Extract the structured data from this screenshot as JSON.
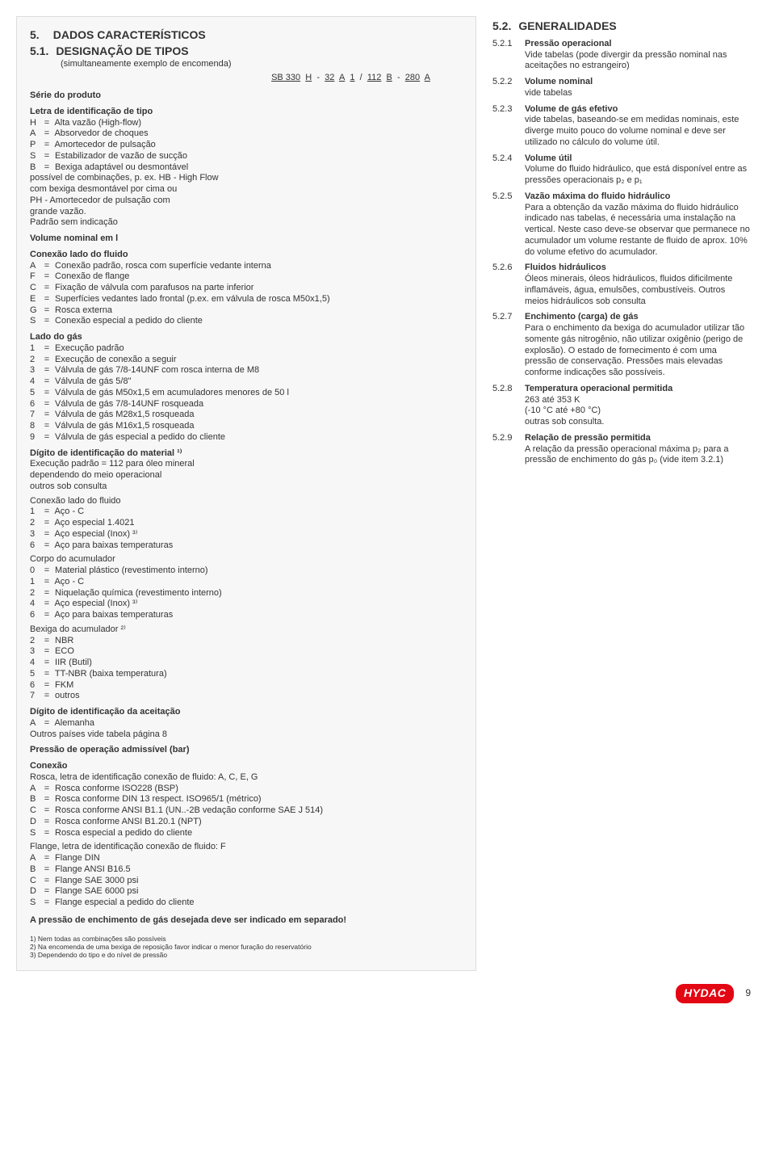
{
  "left": {
    "sec_num": "5.",
    "sec_title": "DADOS CARACTERÍSTICOS",
    "sub_num": "5.1.",
    "sub_title": "DESIGNAÇÃO DE TIPOS",
    "sub_caption": "(simultaneamente exemplo de encomenda)",
    "code_parts": [
      "SB 330",
      "H",
      "-",
      "32",
      "A",
      "1",
      "/",
      "112",
      "B",
      "-",
      "280",
      "A"
    ],
    "groups": [
      {
        "title": "Série do produto"
      },
      {
        "title": "Letra de identificação de tipo",
        "lines": [
          [
            "H",
            "Alta vazão (High-flow)"
          ],
          [
            "A",
            "Absorvedor de choques"
          ],
          [
            "P",
            "Amortecedor de pulsação"
          ],
          [
            "S",
            "Estabilizador de vazão de sucção"
          ],
          [
            "B",
            "Bexiga adaptável ou desmontável"
          ]
        ],
        "trailer": [
          "possível de combinações, p. ex. HB - High Flow",
          "com bexiga desmontável por cima ou",
          "PH - Amortecedor de pulsação com",
          "grande vazão.",
          "Padrão sem indicação"
        ]
      },
      {
        "title": "Volume nominal em l"
      },
      {
        "title": "Conexão lado do fluido",
        "lines": [
          [
            "A",
            "Conexão padrão, rosca com superfície vedante interna"
          ],
          [
            "F",
            "Conexão de flange"
          ],
          [
            "C",
            "Fixação de válvula com parafusos na parte inferior"
          ],
          [
            "E",
            "Superfícies vedantes lado frontal (p.ex. em válvula de rosca M50x1,5)"
          ],
          [
            "G",
            "Rosca externa"
          ],
          [
            "S",
            "Conexão especial a pedido do cliente"
          ]
        ]
      },
      {
        "title": "Lado do gás",
        "lines": [
          [
            "1",
            "Execução padrão"
          ],
          [
            "2",
            "Execução de conexão a seguir"
          ],
          [
            "3",
            "Válvula de gás 7/8-14UNF com rosca interna de M8"
          ],
          [
            "4",
            "Válvula de gás 5/8\""
          ],
          [
            "5",
            "Válvula de gás M50x1,5 em acumuladores menores de 50 l"
          ],
          [
            "6",
            "Válvula de gás 7/8-14UNF rosqueada"
          ],
          [
            "7",
            "Válvula de gás M28x1,5 rosqueada"
          ],
          [
            "8",
            "Válvula de gás M16x1,5 rosqueada"
          ],
          [
            "9",
            "Válvula de gás especial a pedido do cliente"
          ]
        ]
      },
      {
        "title": "Dígito de identificação do material ¹⁾",
        "trailer": [
          "Execução padrão = 112 para óleo mineral",
          "dependendo do meio operacional",
          "outros sob consulta"
        ],
        "subgroups": [
          {
            "subtitle": "Conexão lado do fluido",
            "lines": [
              [
                "1",
                "Aço - C"
              ],
              [
                "2",
                "Aço especial 1.4021"
              ],
              [
                "3",
                "Aço especial (Inox) ³⁾"
              ],
              [
                "6",
                "Aço para baixas temperaturas"
              ]
            ]
          },
          {
            "subtitle": "Corpo do acumulador",
            "lines": [
              [
                "0",
                "Material plástico (revestimento interno)"
              ],
              [
                "1",
                "Aço - C"
              ],
              [
                "2",
                "Niquelação química (revestimento interno)"
              ],
              [
                "4",
                "Aço especial (Inox) ³⁾"
              ],
              [
                "6",
                "Aço para baixas temperaturas"
              ]
            ]
          },
          {
            "subtitle": "Bexiga do acumulador ²⁾",
            "lines": [
              [
                "2",
                "NBR"
              ],
              [
                "3",
                "ECO"
              ],
              [
                "4",
                "IIR (Butil)"
              ],
              [
                "5",
                "TT-NBR (baixa temperatura)"
              ],
              [
                "6",
                "FKM"
              ],
              [
                "7",
                "outros"
              ]
            ]
          }
        ]
      },
      {
        "title": "Dígito de identificação da aceitação",
        "lines": [
          [
            "A",
            "Alemanha"
          ]
        ],
        "trailer": [
          "Outros países vide tabela página 8"
        ]
      },
      {
        "title": "Pressão de operação admissível (bar)"
      },
      {
        "title": "Conexão",
        "trailer_first": [
          "Rosca, letra de identificação conexão de fluido: A, C, E, G"
        ],
        "lines": [
          [
            "A",
            "Rosca conforme ISO228 (BSP)"
          ],
          [
            "B",
            "Rosca conforme DIN 13 respect. ISO965/1 (métrico)"
          ],
          [
            "C",
            "Rosca conforme ANSI B1.1 (UN..-2B vedação conforme SAE J 514)"
          ],
          [
            "D",
            "Rosca conforme ANSI B1.20.1 (NPT)"
          ],
          [
            "S",
            "Rosca especial a pedido do cliente"
          ]
        ],
        "subgroups": [
          {
            "subtitle": "Flange, letra de identificação conexão de fluido: F",
            "lines": [
              [
                "A",
                "Flange DIN"
              ],
              [
                "B",
                "Flange ANSI B16.5"
              ],
              [
                "C",
                "Flange SAE 3000 psi"
              ],
              [
                "D",
                "Flange SAE 6000 psi"
              ],
              [
                "S",
                "Flange especial a pedido do cliente"
              ]
            ]
          }
        ]
      }
    ],
    "final_bold": "A pressão de enchimento de gás desejada deve ser indicado em separado!",
    "footnotes": [
      "1) Nem todas as combinações são possíveis",
      "2) Na encomenda de uma bexiga de reposição favor indicar o menor furação do reservatório",
      "3) Dependendo do tipo e do nível de pressão"
    ]
  },
  "right": {
    "sec_num": "5.2.",
    "sec_title": "GENERALIDADES",
    "items": [
      {
        "n": "5.2.1",
        "t": "Pressão operacional",
        "b": "Vide tabelas (pode divergir da pressão nominal nas aceitações no estrangeiro)"
      },
      {
        "n": "5.2.2",
        "t": "Volume nominal",
        "b": "vide tabelas"
      },
      {
        "n": "5.2.3",
        "t": "Volume de gás efetivo",
        "b": "vide tabelas, baseando-se em medidas nominais, este diverge muito pouco do volume nominal e deve ser utilizado no cálculo do volume útil."
      },
      {
        "n": "5.2.4",
        "t": "Volume útil",
        "b": "Volume do fluido hidráulico, que está disponível entre as pressões operacionais p₂ e p₁"
      },
      {
        "n": "5.2.5",
        "t": "Vazão máxima do fluido hidráulico",
        "b": "Para a obtenção da vazão máxima do fluido hidráulico indicado nas tabelas, é necessária uma instalação na vertical. Neste caso deve-se observar que permanece no acumulador um volume restante de fluido de aprox. 10% do volume efetivo do acumulador."
      },
      {
        "n": "5.2.6",
        "t": "Fluidos hidráulicos",
        "b": "Óleos minerais, óleos hidráulicos, fluidos dificilmente inflamáveis, água, emulsões, combustíveis. Outros meios hidráulicos sob consulta"
      },
      {
        "n": "5.2.7",
        "t": "Enchimento (carga) de gás",
        "b": "Para o enchimento da bexiga do acumulador utilizar tão somente gás nitrogênio, não utilizar oxigênio (perigo de explosão). O estado de fornecimento é com uma pressão de conservação. Pressões mais elevadas conforme indicações são possíveis."
      },
      {
        "n": "5.2.8",
        "t": "Temperatura operacional permitida",
        "b": "263 até 353 K\n(-10 °C até +80 °C)\noutras sob consulta."
      },
      {
        "n": "5.2.9",
        "t": "Relação de pressão permitida",
        "b": "A relação da pressão operacional máxima p₂ para a pressão de enchimento do gás p₀ (vide item 3.2.1)"
      }
    ]
  },
  "footer": {
    "logo": "HYDAC",
    "page": "9"
  }
}
